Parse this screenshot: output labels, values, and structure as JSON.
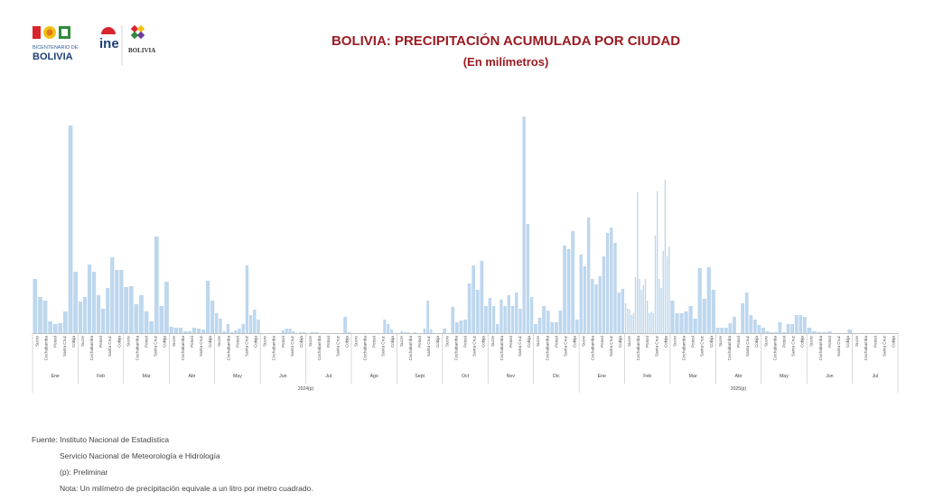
{
  "header": {
    "logo_texts": [
      "BICENTENARIO DE",
      "BOLIVIA",
      "ine",
      "BOLIVIA"
    ],
    "title": "BOLIVIA: PRECIPITACIÓN ACUMULADA POR CIUDAD",
    "subtitle": "(En milímetros)"
  },
  "footer": {
    "source": "Fuente: Instituto Nacional de Estadística",
    "source2": "Servicio Nacional de Meteorología e Hidrología",
    "prelim": "(p): Preliminar",
    "note": "Nota: Un milímetro de precipitación equivale a un litro por metro cuadrado."
  },
  "colors": {
    "bar": "#bdd7ee",
    "title": "#9b1b22",
    "axis": "#bfbfbf"
  },
  "chart_data": {
    "type": "bar",
    "title": "BOLIVIA: PRECIPITACIÓN ACUMULADA POR CIUDAD",
    "ylabel": "",
    "ylim": [
      0,
      240
    ],
    "city_labels": [
      "Sucre",
      "Cochabamba",
      "Potosí",
      "Santa Cruz",
      "Cobija"
    ],
    "years": [
      {
        "label": "2024(p)",
        "months": [
          "Ene",
          "Feb",
          "Mar",
          "Abr",
          "May",
          "Jun",
          "Jul",
          "Ago",
          "Sept",
          "Oct",
          "Nov",
          "Dic"
        ]
      },
      {
        "label": "2025(p)",
        "months": [
          "Ene",
          "Feb",
          "Mar",
          "Abr",
          "May",
          "Jun",
          "Jul"
        ]
      }
    ],
    "values": [
      [
        60,
        40,
        36,
        13,
        10,
        11,
        24,
        230,
        68
      ],
      [
        35,
        40,
        76,
        68,
        42,
        27,
        50,
        84,
        70,
        70
      ],
      [
        51,
        52,
        32,
        42,
        24,
        13,
        107,
        30,
        57
      ],
      [
        7,
        6,
        6,
        2,
        2,
        6,
        5,
        4,
        58,
        36
      ],
      [
        22,
        16,
        2,
        10,
        1,
        3,
        5,
        10,
        75,
        20,
        26,
        15
      ],
      [
        0,
        0,
        0,
        0,
        0,
        0,
        3,
        5,
        5,
        2,
        0,
        1,
        1
      ],
      [
        0,
        1,
        1,
        0,
        0,
        0,
        0,
        0,
        0,
        18,
        1
      ],
      [
        0,
        0,
        0,
        0,
        0,
        0,
        0,
        0,
        0,
        15,
        10,
        4,
        0
      ],
      [
        0,
        2,
        1,
        1,
        0,
        1,
        0,
        0,
        5,
        36,
        4,
        0,
        0,
        0
      ],
      [
        5,
        0,
        29,
        12,
        14,
        15,
        55,
        75,
        48,
        80,
        30
      ],
      [
        39,
        30,
        10,
        37,
        30,
        42,
        30,
        45,
        27,
        240,
        121,
        40
      ],
      [
        10,
        17,
        30,
        25,
        12,
        12,
        25,
        97,
        93,
        113,
        15
      ],
      [
        87,
        74,
        128,
        60,
        54,
        63,
        85,
        111,
        117,
        100,
        45,
        49
      ],
      [
        33,
        27,
        26,
        20,
        22,
        62,
        156,
        60,
        48,
        53,
        60,
        36,
        22,
        24,
        22,
        108,
        157,
        60,
        50,
        91,
        170,
        85,
        96
      ],
      [
        36,
        22,
        22,
        24,
        30,
        16,
        72,
        38,
        73,
        48
      ],
      [
        6,
        6,
        6,
        11,
        18,
        0,
        33,
        45,
        20,
        15,
        9
      ],
      [
        6,
        2,
        1,
        1,
        12,
        1,
        10,
        10,
        20,
        20,
        18
      ],
      [
        6,
        2,
        1,
        1,
        2,
        0,
        0,
        0,
        4
      ]
    ]
  }
}
